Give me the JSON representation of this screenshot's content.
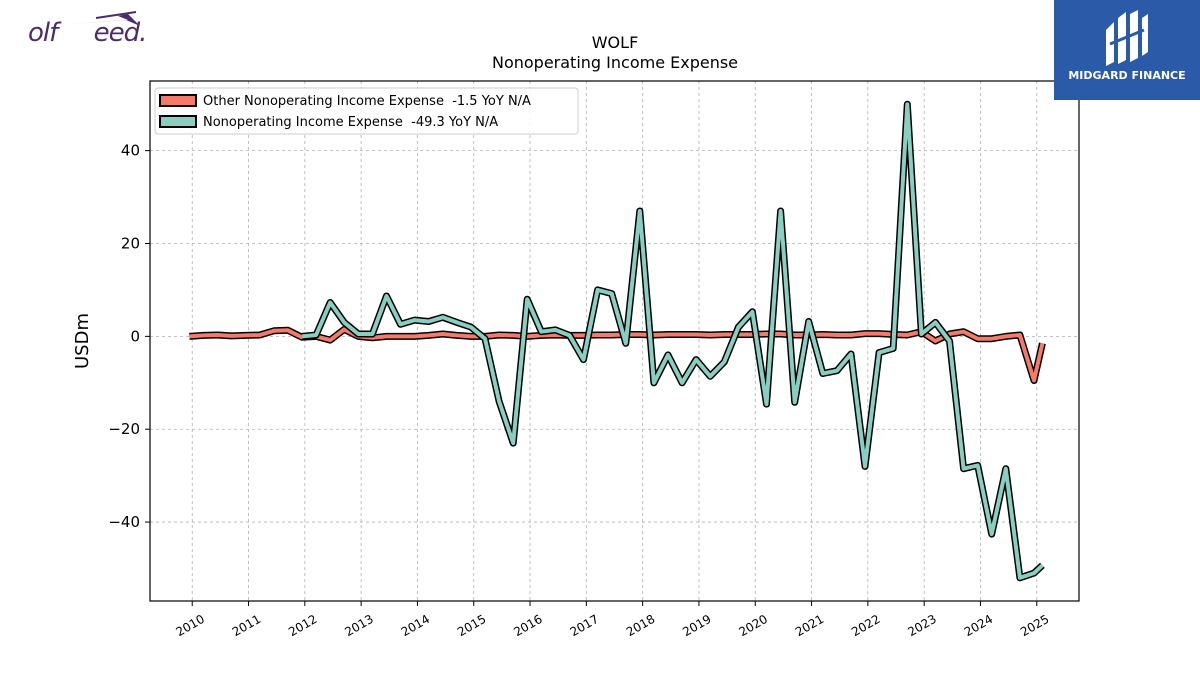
{
  "brand": {
    "left_logo_text": "olf     eed.",
    "right_logo_text": "MIDGARD FINANCE"
  },
  "colors": {
    "other": "#f47a6a",
    "nonop": "#88cfc2",
    "outline": "#000000",
    "right_logo_bg": "#2a5aa8",
    "left_logo": "#4a2c6e"
  },
  "chart_data": {
    "type": "line",
    "title": "WOLF",
    "subtitle": "Nonoperating Income Expense",
    "xlabel": "",
    "ylabel": "USDm",
    "xlim": [
      2009.25,
      2025.75
    ],
    "ylim": [
      -57,
      55
    ],
    "yticks": [
      40,
      20,
      0,
      -20,
      -40
    ],
    "ytick_labels": [
      "40",
      "20",
      "0",
      "−20",
      "−40"
    ],
    "xticks": [
      2010,
      2011,
      2012,
      2013,
      2014,
      2015,
      2016,
      2017,
      2018,
      2019,
      2020,
      2021,
      2022,
      2023,
      2024,
      2025
    ],
    "xtick_labels": [
      "2010",
      "2011",
      "2012",
      "2013",
      "2014",
      "2015",
      "2016",
      "2017",
      "2018",
      "2019",
      "2020",
      "2021",
      "2022",
      "2023",
      "2024",
      "2025"
    ],
    "grid": true,
    "legend_position": "top-left",
    "series": [
      {
        "name": "Other Nonoperating Income Expense  -1.5 YoY N/A",
        "color": "#f47a6a",
        "x": [
          2009.95,
          2010.2,
          2010.45,
          2010.7,
          2010.95,
          2011.2,
          2011.45,
          2011.7,
          2011.95,
          2012.2,
          2012.45,
          2012.7,
          2012.95,
          2013.2,
          2013.45,
          2013.7,
          2013.95,
          2014.2,
          2014.45,
          2014.7,
          2014.95,
          2015.2,
          2015.45,
          2015.7,
          2015.95,
          2016.2,
          2016.45,
          2016.7,
          2016.95,
          2017.2,
          2017.45,
          2017.7,
          2017.95,
          2018.2,
          2018.45,
          2018.7,
          2018.95,
          2019.2,
          2019.45,
          2019.7,
          2019.95,
          2020.2,
          2020.45,
          2020.7,
          2020.95,
          2021.2,
          2021.45,
          2021.7,
          2021.95,
          2022.2,
          2022.45,
          2022.7,
          2022.95,
          2023.2,
          2023.45,
          2023.7,
          2023.95,
          2024.2,
          2024.45,
          2024.7,
          2024.95,
          2025.1
        ],
        "y": [
          0,
          0.2,
          0.3,
          0.1,
          0.2,
          0.3,
          1.2,
          1.3,
          -0.2,
          0,
          -0.8,
          1.5,
          0,
          -0.3,
          0,
          0,
          0,
          0.2,
          0.5,
          0.2,
          0,
          0,
          0.3,
          0.2,
          0,
          0.2,
          0.3,
          0.2,
          0.2,
          0.3,
          0.3,
          0.4,
          0.4,
          0.3,
          0.4,
          0.4,
          0.4,
          0.3,
          0.4,
          0.4,
          0.4,
          0.5,
          0.5,
          0.3,
          0.3,
          0.4,
          0.3,
          0.3,
          0.6,
          0.6,
          0.4,
          0.3,
          1.0,
          -1.0,
          0.5,
          1.0,
          -0.5,
          -0.5,
          0,
          0.3,
          -9.5,
          -1.5
        ]
      },
      {
        "name": "Nonoperating Income Expense  -49.3 YoY N/A",
        "color": "#88cfc2",
        "x": [
          2011.95,
          2012.2,
          2012.45,
          2012.7,
          2012.95,
          2013.2,
          2013.45,
          2013.7,
          2013.95,
          2014.2,
          2014.45,
          2014.7,
          2014.95,
          2015.2,
          2015.45,
          2015.7,
          2015.95,
          2016.2,
          2016.45,
          2016.7,
          2016.95,
          2017.2,
          2017.45,
          2017.7,
          2017.95,
          2018.2,
          2018.45,
          2018.7,
          2018.95,
          2019.2,
          2019.45,
          2019.7,
          2019.95,
          2020.2,
          2020.45,
          2020.7,
          2020.95,
          2021.2,
          2021.45,
          2021.7,
          2021.95,
          2022.2,
          2022.45,
          2022.7,
          2022.95,
          2023.2,
          2023.45,
          2023.7,
          2023.95,
          2024.2,
          2024.45,
          2024.7,
          2024.95,
          2025.1
        ],
        "y": [
          0,
          0.3,
          7.3,
          3.0,
          0.5,
          0.5,
          8.7,
          2.6,
          3.5,
          3.2,
          4.1,
          3.0,
          2.0,
          -0.5,
          -14.0,
          -23.0,
          8.0,
          1.0,
          1.4,
          0.2,
          -5.0,
          10.0,
          9.2,
          -1.5,
          27.0,
          -10.0,
          -4.0,
          -10.0,
          -5.0,
          -8.6,
          -5.5,
          2.0,
          5.3,
          -14.6,
          27.0,
          -14.2,
          3.2,
          -8.0,
          -7.4,
          -3.8,
          -28.0,
          -3.5,
          -2.6,
          50.0,
          0.5,
          3.0,
          -1.0,
          -28.5,
          -27.8,
          -42.6,
          -28.5,
          -52.0,
          -51.0,
          -49.3
        ]
      }
    ]
  }
}
